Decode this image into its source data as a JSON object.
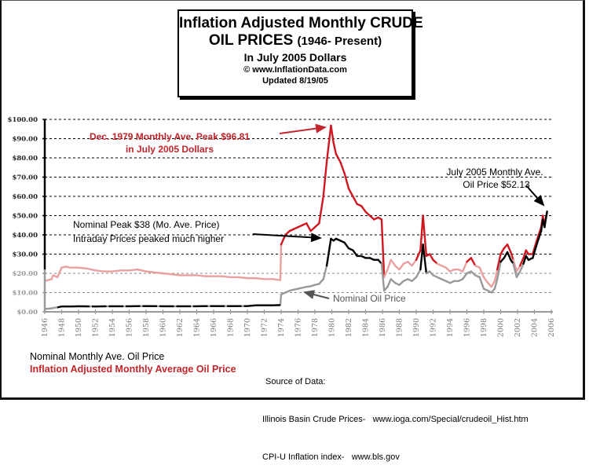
{
  "title": {
    "line1": "Inflation Adjusted Monthly CRUDE",
    "line2_main": "OIL PRICES ",
    "line2_sub": "(1946- Present)",
    "line3": "In July 2005 Dollars",
    "line4": "© www.InflationData.com",
    "line5": "Updated 8/19/05"
  },
  "legend": {
    "nominal": "Nominal Monthly Ave. Oil Price",
    "adjusted": "Inflation Adjusted Monthly Average Oil Price"
  },
  "source": {
    "heading": "Source of Data:",
    "line1": "Illinois Basin Crude Prices-   www.ioga.com/Special/crudeoil_Hist.htm",
    "line2": "CPI-U Inflation index-   www.bls.gov"
  },
  "colors": {
    "adjusted_high": "#d0161f",
    "adjusted_low": "#e8a0a0",
    "nominal_high": "#000000",
    "nominal_low": "#999999",
    "axis": "#000000",
    "xaxis": "#999999"
  },
  "chart_data": {
    "type": "line",
    "title": "Inflation Adjusted Monthly CRUDE OIL PRICES (1946- Present) In July 2005 Dollars",
    "xlabel": "",
    "ylabel": "",
    "xlim": [
      1946,
      2006
    ],
    "ylim": [
      0,
      100
    ],
    "grid": true,
    "legend_position": "bottom-left",
    "y_ticks": [
      "$0.00",
      "$10.00",
      "$20.00",
      "$30.00",
      "$40.00",
      "$50.00",
      "$60.00",
      "$70.00",
      "$80.00",
      "$90.00",
      "$100.00"
    ],
    "y_tick_values": [
      0,
      10,
      20,
      30,
      40,
      50,
      60,
      70,
      80,
      90,
      100
    ],
    "x_ticks": [
      "1946",
      "1948",
      "1950",
      "1952",
      "1954",
      "1956",
      "1958",
      "1960",
      "1962",
      "1964",
      "1966",
      "1968",
      "1970",
      "1972",
      "1974",
      "1976",
      "1978",
      "1980",
      "1982",
      "1984",
      "1986",
      "1988",
      "1990",
      "1992",
      "1994",
      "1996",
      "1998",
      "2000",
      "2002",
      "2004",
      "2006"
    ],
    "series": [
      {
        "name": "Inflation Adjusted Monthly Average Oil Price",
        "x": [
          1946,
          1946.8,
          1947,
          1947.5,
          1948,
          1948.5,
          1949,
          1950,
          1951,
          1952,
          1953,
          1954,
          1955,
          1956,
          1957,
          1958,
          1959,
          1960,
          1961,
          1962,
          1963,
          1964,
          1965,
          1966,
          1967,
          1968,
          1969,
          1970,
          1971,
          1972,
          1973,
          1973.9,
          1974,
          1974.5,
          1975,
          1975.5,
          1976,
          1976.5,
          1977,
          1977.5,
          1978,
          1978.5,
          1979,
          1979.4,
          1979.9,
          1980.2,
          1980.5,
          1981,
          1981.5,
          1982,
          1982.5,
          1983,
          1983.5,
          1984,
          1984.5,
          1985,
          1985.5,
          1985.9,
          1986.2,
          1986.6,
          1987,
          1987.5,
          1988,
          1988.5,
          1989,
          1989.5,
          1990,
          1990.5,
          1990.8,
          1991.2,
          1991.6,
          1992,
          1992.5,
          1993,
          1993.5,
          1994,
          1994.5,
          1995,
          1995.5,
          1996,
          1996.5,
          1997,
          1997.5,
          1998,
          1998.5,
          1998.9,
          1999.3,
          1999.6,
          2000,
          2000.4,
          2000.8,
          2001.2,
          2001.5,
          2001.9,
          2002.3,
          2002.7,
          2003,
          2003.3,
          2003.8,
          2004.2,
          2004.5,
          2004.8,
          2005,
          2005.2,
          2005.5
        ],
        "values": [
          16,
          17,
          19,
          18,
          23,
          23.5,
          23,
          23,
          22.5,
          21.5,
          21,
          21,
          21.5,
          21.5,
          22,
          21,
          20.5,
          20,
          19.5,
          19,
          19,
          19,
          18.5,
          18.5,
          18.5,
          18,
          18,
          17.5,
          17.5,
          17,
          17,
          16.5,
          35,
          40,
          42,
          43,
          44,
          45,
          46,
          42,
          44,
          46,
          60,
          78,
          96.81,
          88,
          82,
          78,
          72,
          64,
          60,
          56,
          55,
          52,
          50,
          48,
          49,
          48,
          18,
          22,
          27,
          24,
          22,
          25,
          26,
          24,
          27,
          32,
          50,
          29,
          30,
          27,
          25,
          24,
          23,
          21,
          22,
          22,
          21,
          26,
          28,
          24,
          23,
          18,
          15,
          13,
          16,
          22,
          30,
          33,
          35,
          31,
          27,
          21,
          24,
          28,
          32,
          30,
          30,
          36,
          40,
          44,
          50,
          45,
          52.13
        ]
      },
      {
        "name": "Nominal Monthly Ave. Oil Price",
        "x": [
          1946,
          1946.8,
          1947,
          1947.5,
          1948,
          1949,
          1950,
          1952,
          1954,
          1956,
          1958,
          1960,
          1962,
          1964,
          1966,
          1968,
          1970,
          1971,
          1972,
          1973,
          1973.9,
          1974,
          1974.5,
          1975,
          1975.5,
          1976,
          1976.5,
          1977,
          1977.5,
          1978,
          1978.5,
          1979,
          1979.4,
          1979.9,
          1980.2,
          1980.5,
          1981,
          1981.5,
          1982,
          1982.5,
          1983,
          1983.5,
          1984,
          1984.5,
          1985,
          1985.5,
          1985.9,
          1986.2,
          1986.6,
          1987,
          1987.5,
          1988,
          1988.5,
          1989,
          1989.5,
          1990,
          1990.5,
          1990.8,
          1991.2,
          1991.6,
          1992,
          1992.5,
          1993,
          1993.5,
          1994,
          1994.5,
          1995,
          1995.5,
          1996,
          1996.5,
          1997,
          1997.5,
          1998,
          1998.5,
          1998.9,
          1999.3,
          1999.6,
          2000,
          2000.4,
          2000.8,
          2001.2,
          2001.5,
          2001.9,
          2002.3,
          2002.7,
          2003,
          2003.3,
          2003.8,
          2004.2,
          2004.5,
          2004.8,
          2005,
          2005.2,
          2005.5
        ],
        "values": [
          1.5,
          1.8,
          2,
          2.3,
          2.8,
          2.8,
          2.9,
          2.8,
          2.9,
          2.9,
          3,
          2.9,
          2.9,
          2.9,
          3,
          3,
          3,
          3.4,
          3.4,
          3.4,
          3.5,
          9,
          10,
          11,
          11.5,
          12,
          12.5,
          13,
          13.3,
          14,
          14.5,
          17,
          24,
          38,
          37,
          38,
          37,
          36,
          33,
          32,
          29,
          29,
          28,
          28,
          27,
          27,
          25,
          11,
          13,
          17,
          15,
          14,
          16,
          17,
          16,
          18,
          22,
          35,
          20,
          21,
          19,
          18,
          17,
          16,
          15,
          16,
          16,
          17,
          20,
          21,
          19,
          18,
          12,
          11,
          10,
          12,
          17,
          26,
          28,
          31,
          27,
          25,
          18,
          21,
          25,
          29,
          27,
          28,
          34,
          38,
          42,
          48,
          44,
          52.13
        ]
      }
    ],
    "annotations": [
      {
        "text_line1": "Dec. 1979 Monthly Ave. Peak $96.81",
        "text_line2": "in July 2005 Dollars",
        "points_to": [
          1979.9,
          96.81
        ]
      },
      {
        "text_line1": "Nominal Peak $38 (Mo. Ave. Price)",
        "text_line2": "Intraday Prices peaked much higher",
        "points_to": [
          1979.9,
          38
        ]
      },
      {
        "text_line1": "Nominal Oil Price",
        "points_to": [
          1976.5,
          12
        ]
      },
      {
        "text_line1": "July 2005 Monthly Ave.",
        "text_line2": "Oil Price $52.13",
        "points_to": [
          2005.5,
          52.13
        ]
      }
    ]
  }
}
